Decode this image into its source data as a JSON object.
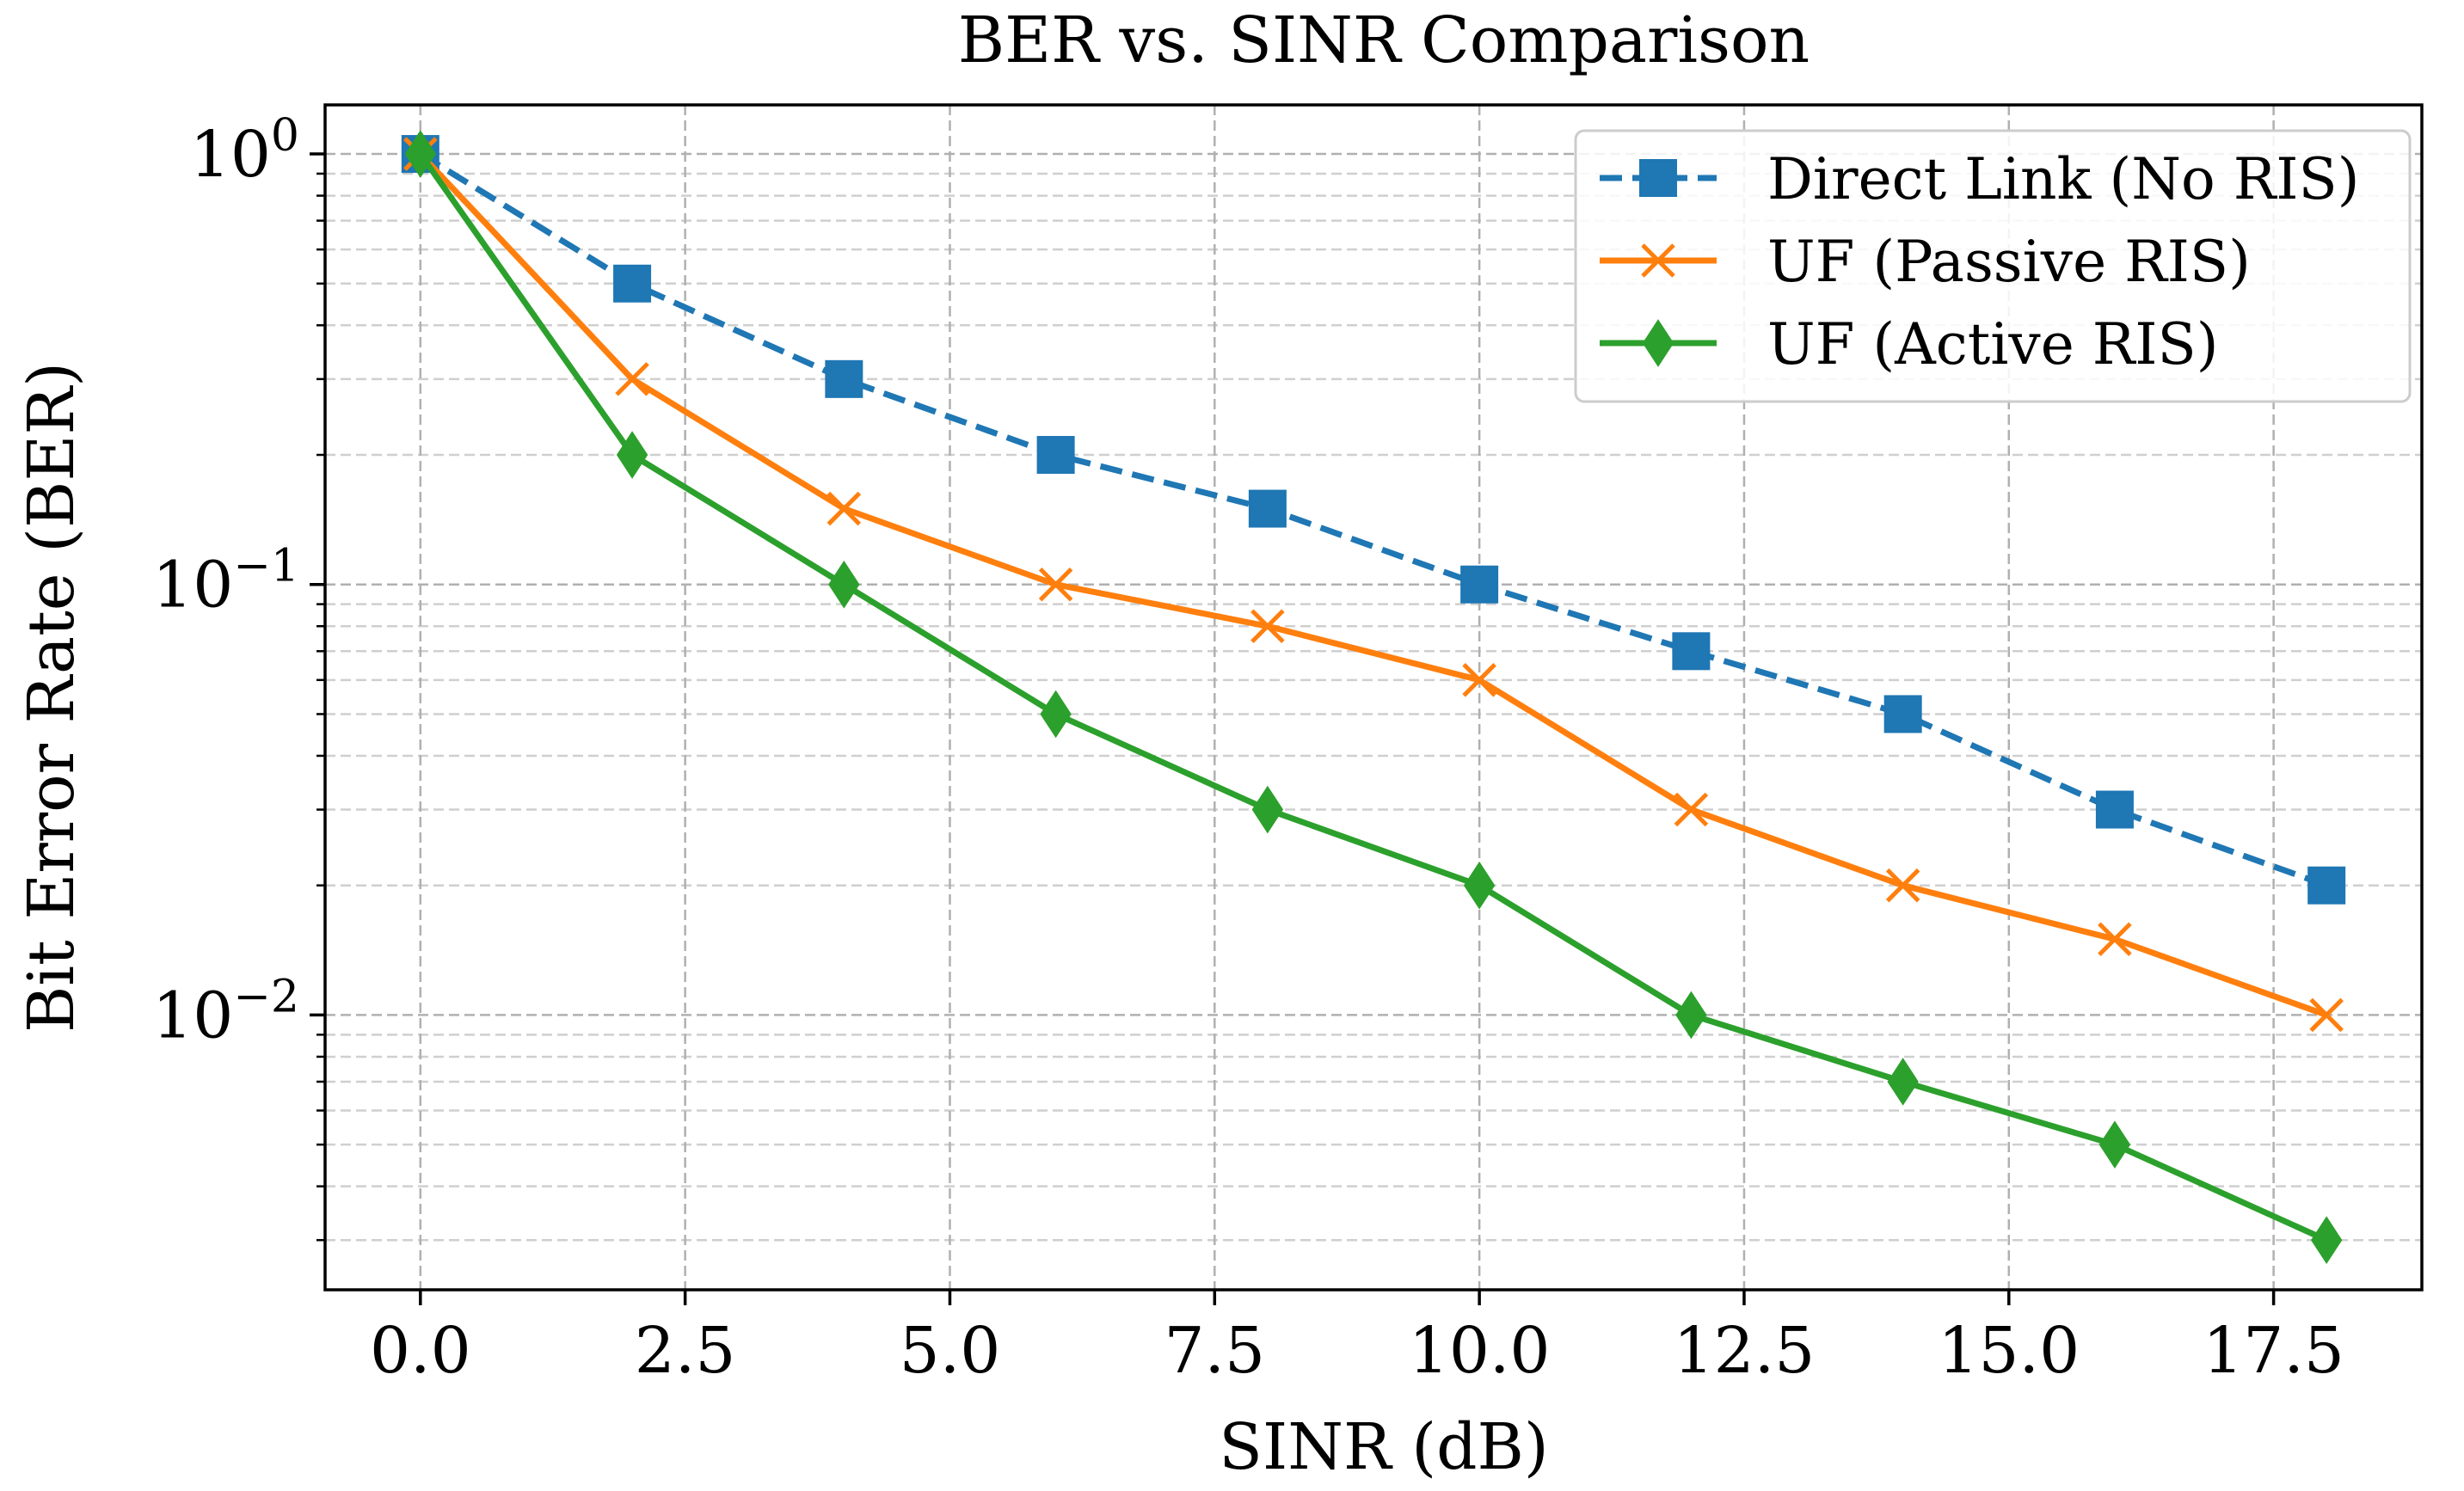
{
  "chart_data": {
    "type": "line",
    "title": "BER vs. SINR Comparison",
    "xlabel": "SINR (dB)",
    "ylabel": "Bit Error Rate (BER)",
    "xlim": [
      -0.9,
      18.9
    ],
    "ylim": [
      0.0023,
      1.3
    ],
    "yscale": "log",
    "grid": true,
    "legend_position": "top-right",
    "x_ticks": [
      0.0,
      2.5,
      5.0,
      7.5,
      10.0,
      12.5,
      15.0,
      17.5
    ],
    "x_tick_labels": [
      "0.0",
      "2.5",
      "5.0",
      "7.5",
      "10.0",
      "12.5",
      "15.0",
      "17.5"
    ],
    "y_ticks": [
      {
        "value": 1,
        "base": "10",
        "exp": "0"
      },
      {
        "value": 0.1,
        "base": "10",
        "exp": "−1"
      },
      {
        "value": 0.01,
        "base": "10",
        "exp": "−2"
      }
    ],
    "x": [
      0,
      2,
      4,
      6,
      8,
      10,
      12,
      14,
      16,
      18
    ],
    "series": [
      {
        "name": "Direct Link (No RIS)",
        "color": "#1f77b4",
        "linestyle": "dashed",
        "marker": "square",
        "values": [
          1.0,
          0.5,
          0.3,
          0.2,
          0.15,
          0.1,
          0.07,
          0.05,
          0.03,
          0.02
        ]
      },
      {
        "name": "UF (Passive RIS)",
        "color": "#ff7f0e",
        "linestyle": "solid",
        "marker": "x",
        "values": [
          1.0,
          0.3,
          0.15,
          0.1,
          0.08,
          0.06,
          0.03,
          0.02,
          0.015,
          0.01
        ]
      },
      {
        "name": "UF (Active RIS)",
        "color": "#2ca02c",
        "linestyle": "solid",
        "marker": "diamond",
        "values": [
          1.0,
          0.2,
          0.1,
          0.05,
          0.03,
          0.02,
          0.01,
          0.007,
          0.005,
          0.003
        ]
      }
    ]
  }
}
